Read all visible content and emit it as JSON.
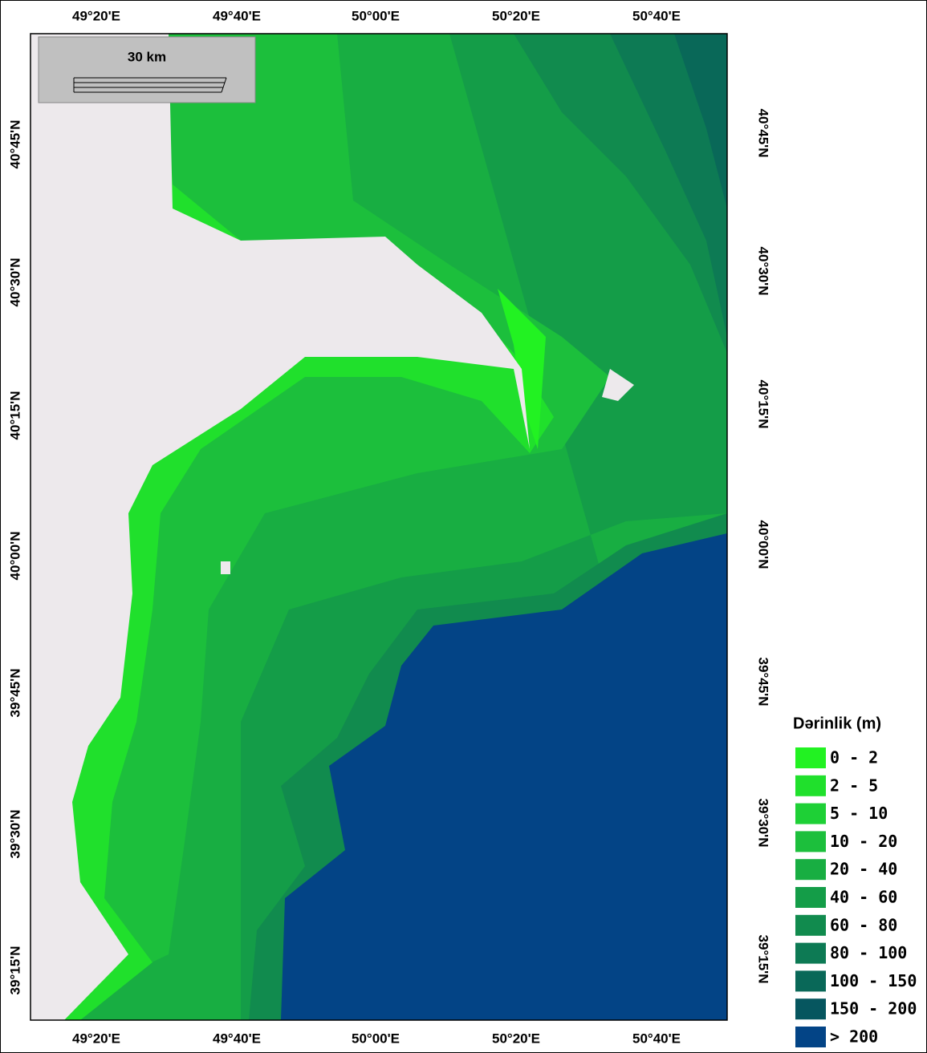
{
  "longitude_labels_top": [
    "49°20'E",
    "49°40'E",
    "50°00'E",
    "50°20'E",
    "50°40'E"
  ],
  "longitude_labels_bottom": [
    "49°20'E",
    "49°40'E",
    "50°00'E",
    "50°20'E",
    "50°40'E"
  ],
  "latitude_labels_left": [
    "40°45'N",
    "40°30'N",
    "40°15'N",
    "40°00'N",
    "39°45'N",
    "39°30'N",
    "39°15'N"
  ],
  "latitude_labels_right": [
    "40°45'N",
    "40°30'N",
    "40°15'N",
    "40°00'N",
    "39°45'N",
    "39°30'N",
    "39°15'N"
  ],
  "scale_bar": {
    "label": "30 km"
  },
  "legend": {
    "title": "Dərinlik (m)",
    "items": [
      {
        "label": "0 - 2",
        "color": "#22f222"
      },
      {
        "label": "2 - 5",
        "color": "#20e02c"
      },
      {
        "label": "5 - 10",
        "color": "#1ed036"
      },
      {
        "label": "10 - 20",
        "color": "#1cbf3c"
      },
      {
        "label": "20 - 40",
        "color": "#18ae42"
      },
      {
        "label": "40 - 60",
        "color": "#149d48"
      },
      {
        "label": "60 - 80",
        "color": "#118b4e"
      },
      {
        "label": "80 - 100",
        "color": "#0d7a54"
      },
      {
        "label": "100 - 150",
        "color": "#096858"
      },
      {
        "label": "150 - 200",
        "color": "#06565f"
      },
      {
        "label": "> 200",
        "color": "#034486"
      }
    ]
  }
}
